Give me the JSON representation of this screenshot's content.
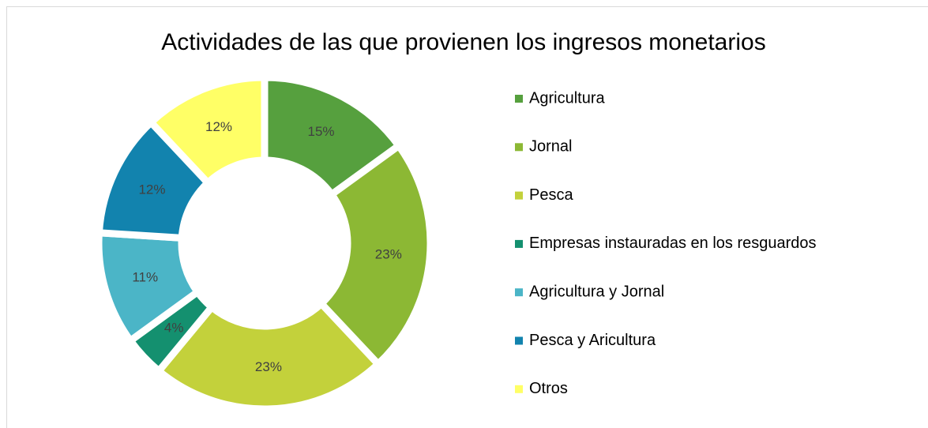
{
  "chart_data": {
    "type": "donut",
    "title": "Actividades de las que provienen los ingresos monetarios",
    "categories": [
      "Agricultura",
      "Jornal",
      "Pesca",
      "Empresas instauradas en los resguardos",
      "Agricultura y Jornal",
      "Pesca y Aricultura",
      "Otros"
    ],
    "values": [
      15,
      23,
      23,
      4,
      11,
      12,
      12
    ],
    "value_labels": [
      "15%",
      "23%",
      "23%",
      "4%",
      "11%",
      "12%",
      "12%"
    ],
    "colors": [
      "#56a03e",
      "#8cb834",
      "#c3d13b",
      "#14906f",
      "#4bb5c7",
      "#1283ae",
      "#ffff66"
    ],
    "legend": "right"
  }
}
